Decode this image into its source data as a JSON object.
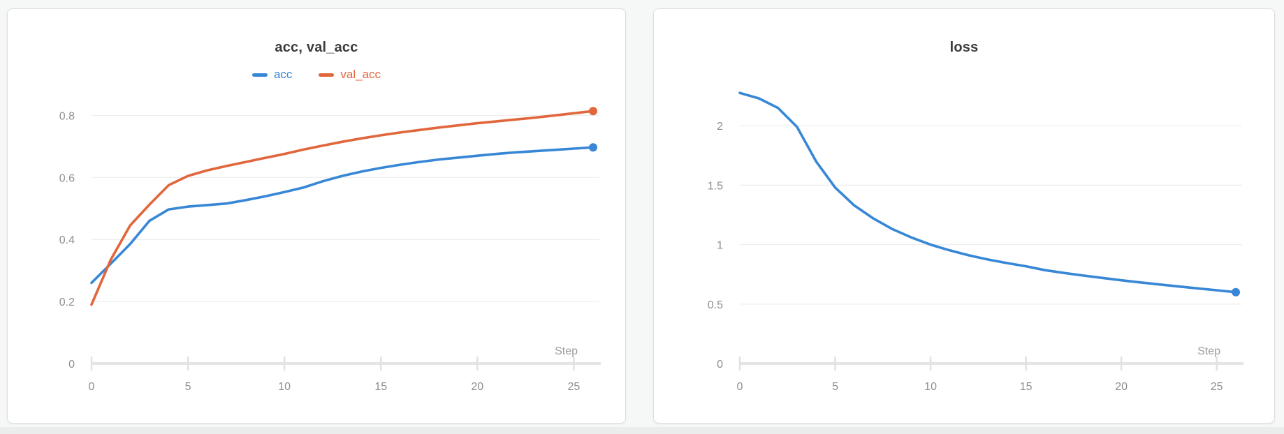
{
  "page": {
    "background_color": "#f6f7f7",
    "panel_border_color": "#dcdddd",
    "grid_color": "#ededed",
    "axis_line_color": "#e4e5e5",
    "tick_mark_color": "#e0e1e1",
    "tick_text_color": "#8e8e93",
    "title_color": "#3b3b3b"
  },
  "chart_data": [
    {
      "type": "line",
      "title": "acc, val_acc",
      "xlabel": "Step",
      "ylabel": "",
      "xlim": [
        0,
        26
      ],
      "ylim": [
        0,
        0.9
      ],
      "x_ticks": [
        0,
        5,
        10,
        15,
        20,
        25
      ],
      "y_ticks": [
        0,
        0.2,
        0.4,
        0.6,
        0.8
      ],
      "y_tick_labels": [
        "0",
        "0.2",
        "0.4",
        "0.6",
        "0.8"
      ],
      "grid": true,
      "legend_position": "top",
      "show_legend": true,
      "endpoint_dot": true,
      "x": [
        0,
        1,
        2,
        3,
        4,
        5,
        6,
        7,
        8,
        9,
        10,
        11,
        12,
        13,
        14,
        15,
        16,
        17,
        18,
        19,
        20,
        21,
        22,
        23,
        24,
        25,
        26
      ],
      "series": [
        {
          "name": "acc",
          "color": "#3787d6",
          "values": [
            0.26,
            0.322,
            0.385,
            0.46,
            0.497,
            0.506,
            0.511,
            0.516,
            0.527,
            0.539,
            0.553,
            0.568,
            0.588,
            0.605,
            0.619,
            0.631,
            0.641,
            0.65,
            0.658,
            0.664,
            0.67,
            0.676,
            0.681,
            0.685,
            0.689,
            0.693,
            0.697
          ]
        },
        {
          "name": "val_acc",
          "color": "#e2663c",
          "values": [
            0.19,
            0.335,
            0.445,
            0.512,
            0.575,
            0.605,
            0.623,
            0.637,
            0.65,
            0.663,
            0.676,
            0.69,
            0.703,
            0.715,
            0.726,
            0.736,
            0.745,
            0.753,
            0.761,
            0.768,
            0.775,
            0.781,
            0.787,
            0.793,
            0.8,
            0.807,
            0.814
          ]
        }
      ]
    },
    {
      "type": "line",
      "title": "loss",
      "xlabel": "Step",
      "ylabel": "",
      "xlim": [
        0,
        26
      ],
      "ylim": [
        0,
        2.5
      ],
      "x_ticks": [
        0,
        5,
        10,
        15,
        20,
        25
      ],
      "y_ticks": [
        0,
        0.5,
        1,
        1.5,
        2
      ],
      "y_tick_labels": [
        "0",
        "0.5",
        "1",
        "1.5",
        "2"
      ],
      "grid": true,
      "show_legend": false,
      "endpoint_dot": true,
      "x": [
        0,
        1,
        2,
        3,
        4,
        5,
        6,
        7,
        8,
        9,
        10,
        11,
        12,
        13,
        14,
        15,
        16,
        17,
        18,
        19,
        20,
        21,
        22,
        23,
        24,
        25,
        26
      ],
      "series": [
        {
          "name": "loss",
          "color": "#3787d6",
          "values": [
            2.276,
            2.23,
            2.15,
            1.99,
            1.7,
            1.48,
            1.33,
            1.22,
            1.13,
            1.06,
            1.0,
            0.952,
            0.91,
            0.875,
            0.845,
            0.818,
            0.785,
            0.762,
            0.74,
            0.72,
            0.7,
            0.682,
            0.665,
            0.648,
            0.632,
            0.616,
            0.6
          ]
        }
      ]
    }
  ]
}
